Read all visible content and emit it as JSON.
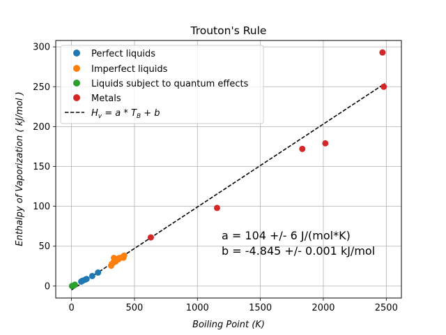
{
  "chart_data": {
    "type": "scatter",
    "title": "Trouton's Rule",
    "xlabel": "Boiling Point (K)",
    "ylabel": "Enthalpy of Vaporization ( kJ/mol )",
    "xlim": [
      -125,
      2620
    ],
    "ylim": [
      -15,
      308
    ],
    "xticks": [
      0,
      500,
      1000,
      1500,
      2000,
      2500
    ],
    "yticks": [
      0,
      50,
      100,
      150,
      200,
      250,
      300
    ],
    "grid": true,
    "legend_position": "upper-left",
    "series": [
      {
        "name": "Perfect liquids",
        "color": "#1f77b4",
        "points": [
          [
            77,
            5.6
          ],
          [
            85,
            6.5
          ],
          [
            90,
            6.8
          ],
          [
            111,
            8.2
          ],
          [
            120,
            8.9
          ],
          [
            165,
            12.6
          ],
          [
            211,
            16.9
          ]
        ]
      },
      {
        "name": "Imperfect liquids",
        "color": "#ff7f0e",
        "points": [
          [
            315,
            25.5
          ],
          [
            320,
            27.5
          ],
          [
            332,
            29.4
          ],
          [
            337,
            35.3
          ],
          [
            351,
            30.8
          ],
          [
            373,
            33.5
          ],
          [
            380,
            35.2
          ],
          [
            400,
            35.9
          ],
          [
            412,
            35.5
          ],
          [
            418,
            38.2
          ]
        ]
      },
      {
        "name": "Liquids subject to quantum effects",
        "color": "#2ca02c",
        "points": [
          [
            4,
            0.08
          ],
          [
            20,
            0.9
          ],
          [
            27,
            1.7
          ]
        ]
      },
      {
        "name": "Metals",
        "color": "#d62728",
        "points": [
          [
            630,
            61
          ],
          [
            1156,
            98
          ],
          [
            1833,
            172
          ],
          [
            2016,
            179
          ],
          [
            2470,
            293
          ],
          [
            2480,
            250
          ]
        ]
      }
    ],
    "fit_line": {
      "name": "H_v = a * T_B + b",
      "color": "#000000",
      "style": "dashed",
      "x_range": [
        0,
        2490
      ]
    },
    "annotations": [
      "a = 104 +/- 6 J/(mol*K)",
      "b = -4.845 +/- 0.001 kJ/mol"
    ]
  }
}
